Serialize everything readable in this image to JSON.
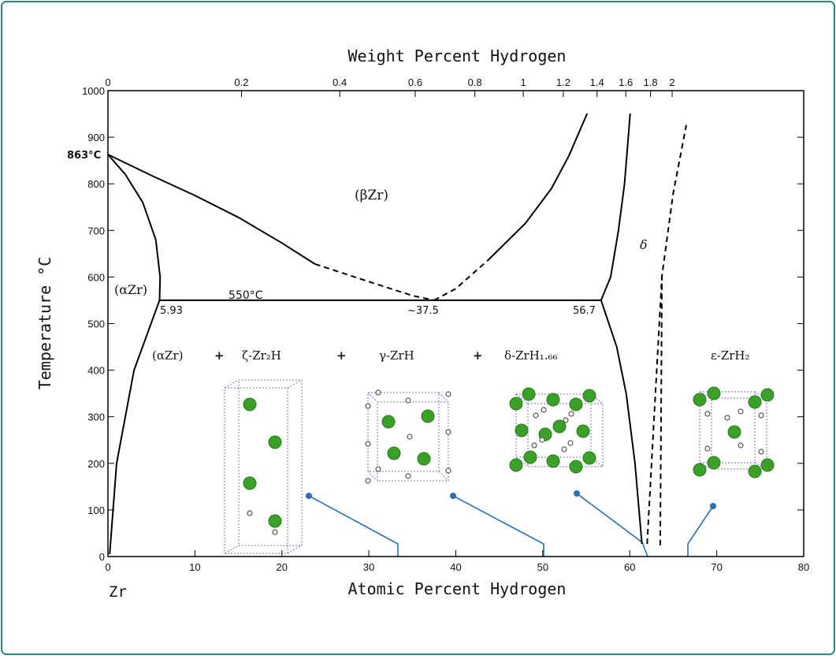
{
  "chart_data": {
    "type": "line",
    "xlabel": "Atomic Percent Hydrogen",
    "ylabel": "Temperature °C",
    "x2label": "Weight Percent Hydrogen",
    "xlim": [
      0,
      80
    ],
    "ylim": [
      0,
      1000
    ],
    "xticks": [
      0,
      10,
      20,
      30,
      40,
      50,
      60,
      70,
      80
    ],
    "yticks": [
      0,
      100,
      200,
      300,
      400,
      500,
      600,
      700,
      800,
      900,
      1000
    ],
    "x2ticks": [
      0,
      0.2,
      0.4,
      0.6,
      0.8,
      1,
      1.2,
      1.4,
      1.6,
      1.8,
      2
    ],
    "annotations": {
      "zr": "Zr",
      "t863": "863°C",
      "alpha": "(αZr)",
      "beta": "(βZr)",
      "delta": "δ",
      "t550": "550°C",
      "c593": "5.93",
      "c375": "~37.5",
      "c567": "56.7"
    },
    "phases": [
      "(αZr)",
      "+",
      "ζ-Zr₂H",
      "+",
      "γ-ZrH",
      "+",
      "δ-ZrH₁.₆₆",
      "ε-ZrH₂"
    ],
    "series": [
      {
        "color": "#000",
        "style": "solid",
        "x": [
          0,
          2,
          4,
          5.5,
          6,
          5.93
        ],
        "values": [
          863,
          820,
          760,
          680,
          600,
          550
        ]
      },
      {
        "color": "#000",
        "style": "solid",
        "x": [
          0,
          5,
          10,
          15,
          20,
          23.8
        ],
        "values": [
          863,
          818,
          775,
          728,
          673,
          628
        ]
      },
      {
        "color": "#000",
        "style": "dashed",
        "x": [
          23.8,
          30,
          35,
          37.5
        ],
        "values": [
          628,
          590,
          560,
          550
        ]
      },
      {
        "color": "#000",
        "style": "dashed",
        "x": [
          37.5,
          40,
          43.7
        ],
        "values": [
          550,
          575,
          636
        ]
      },
      {
        "color": "#000",
        "style": "solid",
        "x": [
          43.7,
          48,
          51,
          53,
          55.1
        ],
        "values": [
          636,
          715,
          790,
          860,
          951
        ]
      },
      {
        "color": "#000",
        "style": "solid",
        "x": [
          56.7,
          57.8,
          58.7,
          59.4,
          60.05
        ],
        "values": [
          550,
          600,
          700,
          800,
          951
        ]
      },
      {
        "color": "#000",
        "style": "solid",
        "x": [
          0.2,
          1,
          3,
          5.93
        ],
        "values": [
          5,
          200,
          400,
          550
        ]
      },
      {
        "color": "#000",
        "style": "solid",
        "x": [
          56.7,
          58.5,
          59.6,
          60.6,
          61.4
        ],
        "values": [
          550,
          450,
          349,
          200,
          27
        ]
      },
      {
        "color": "#000",
        "style": "solid",
        "x": [
          5.93,
          56.7
        ],
        "values": [
          550,
          550
        ]
      },
      {
        "color": "#000",
        "style": "dashed",
        "x": [
          62.0,
          62.8,
          63.7,
          65,
          66.5
        ],
        "values": [
          27,
          300,
          602,
          780,
          926
        ]
      },
      {
        "color": "#000",
        "style": "dashed",
        "x": [
          63.5,
          63.6,
          63.7
        ],
        "values": [
          24,
          300,
          602
        ]
      }
    ]
  }
}
